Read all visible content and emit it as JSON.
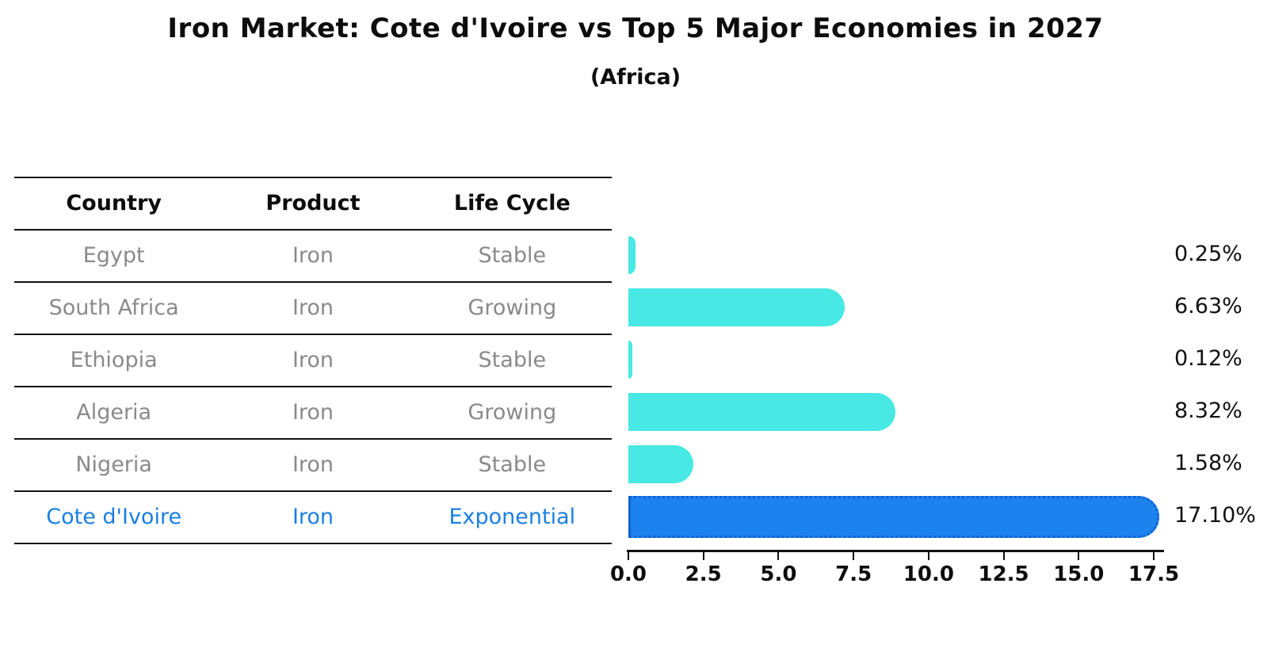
{
  "title": "Iron Market: Cote d'Ivoire vs Top 5 Major Economies in 2027",
  "subtitle": "(Africa)",
  "table": {
    "columns": [
      "Country",
      "Product",
      "Life Cycle"
    ],
    "rows": [
      {
        "country": "Egypt",
        "product": "Iron",
        "life_cycle": "Stable",
        "highlight": false
      },
      {
        "country": "South Africa",
        "product": "Iron",
        "life_cycle": "Growing",
        "highlight": false
      },
      {
        "country": "Ethiopia",
        "product": "Iron",
        "life_cycle": "Stable",
        "highlight": false
      },
      {
        "country": "Algeria",
        "product": "Iron",
        "life_cycle": "Growing",
        "highlight": false
      },
      {
        "country": "Nigeria",
        "product": "Iron",
        "life_cycle": "Stable",
        "highlight": false
      },
      {
        "country": "Cote d'Ivoire",
        "product": "Iron",
        "life_cycle": "Exponential",
        "highlight": true
      }
    ]
  },
  "chart_data": {
    "type": "bar",
    "orientation": "horizontal",
    "title": "Iron Market: Cote d'Ivoire vs Top 5 Major Economies in 2027",
    "subtitle": "(Africa)",
    "categories": [
      "Egypt",
      "South Africa",
      "Ethiopia",
      "Algeria",
      "Nigeria",
      "Cote d'Ivoire"
    ],
    "values": [
      0.25,
      6.63,
      0.12,
      8.32,
      1.58,
      17.1
    ],
    "value_labels": [
      "0.25%",
      "6.63%",
      "0.12%",
      "8.32%",
      "1.58%",
      "17.10%"
    ],
    "highlight_category": "Cote d'Ivoire",
    "xlabel": "",
    "ylabel": "",
    "xlim": [
      0,
      17.5
    ],
    "x_ticks": [
      "0.0",
      "2.5",
      "5.0",
      "7.5",
      "10.0",
      "12.5",
      "15.0",
      "17.5"
    ],
    "grid": false,
    "legend": "none",
    "colors": {
      "bar_default": "#48e9e4",
      "bar_highlight": "#1c82ee",
      "bar_highlight_edge": "#1261d1",
      "highlight_text": "#1c7fe2",
      "table_text": "#8a8a8a",
      "axis_text": "#0d0d0d"
    }
  }
}
